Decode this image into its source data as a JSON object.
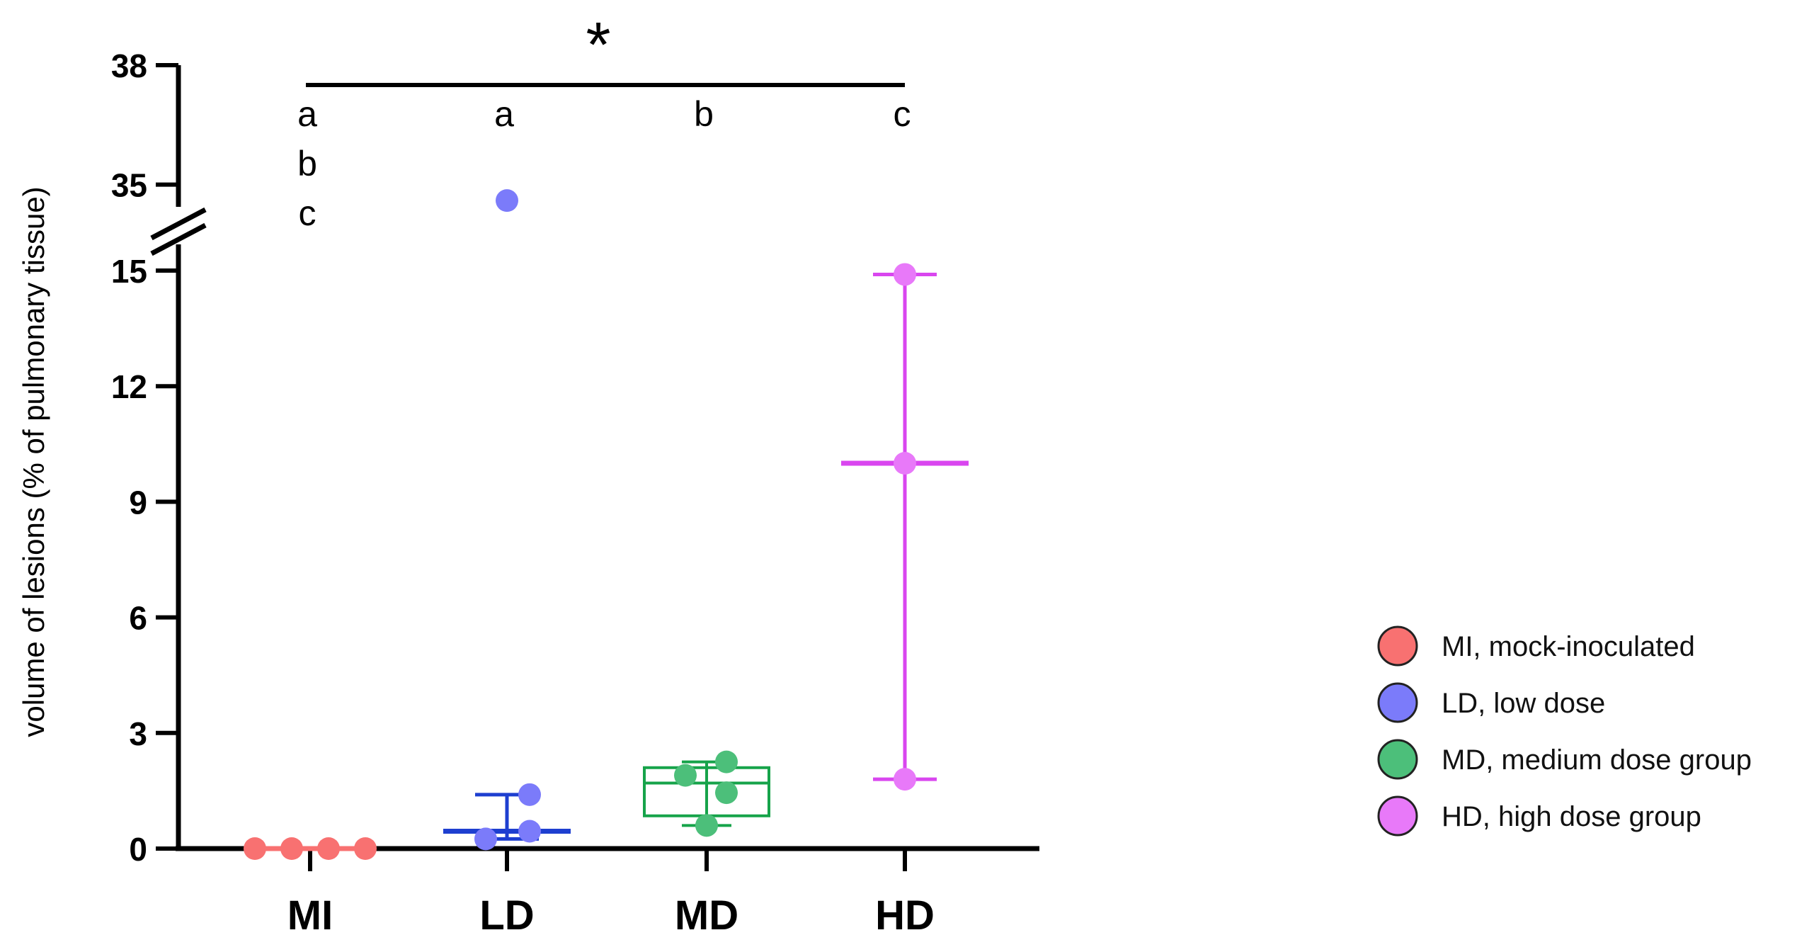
{
  "chart_data": {
    "type": "box_scatter",
    "ylabel": "volume of lesions (% of pulmonary tissue)",
    "xlabel": "",
    "y_axis": {
      "segments": [
        {
          "range": [
            0,
            15
          ],
          "ticks": [
            0,
            3,
            6,
            9,
            12,
            15
          ]
        },
        {
          "range": [
            34.3,
            38
          ],
          "ticks": [
            35,
            38
          ]
        }
      ],
      "axis_break": true
    },
    "categories": [
      "MI",
      "LD",
      "MD",
      "HD"
    ],
    "series": [
      {
        "name": "MI, mock-inoculated",
        "color": "#f87171",
        "points": [
          0,
          0,
          0,
          0
        ],
        "summary": {
          "kind": "median",
          "median": 0
        }
      },
      {
        "name": "LD, low dose",
        "color": "#7b7bfa",
        "line_color": "#1e3fd0",
        "points": [
          34.6,
          1.4,
          0.45,
          0.25
        ],
        "summary": {
          "kind": "median_range",
          "median": 0.45,
          "upper": 1.4,
          "lower": 0.25
        }
      },
      {
        "name": "MD, medium dose group",
        "color": "#4cbf7a",
        "line_color": "#16a34a",
        "points": [
          2.25,
          1.9,
          1.45,
          0.6
        ],
        "summary": {
          "kind": "box",
          "q1": 0.85,
          "median": 1.7,
          "q3": 2.1,
          "min": 0.6,
          "max": 2.25
        }
      },
      {
        "name": "HD, high dose group",
        "color": "#e879f9",
        "line_color": "#d946ef",
        "points": [
          14.9,
          10.0,
          1.8
        ],
        "summary": {
          "kind": "median_range",
          "median": 10.0,
          "upper": 14.9,
          "lower": 1.8
        }
      }
    ],
    "significance": {
      "marker": "*",
      "bracket": [
        "MI",
        "HD"
      ],
      "letters": [
        [
          "a",
          "b",
          "c"
        ],
        [
          "a"
        ],
        [
          "b"
        ],
        [
          "c"
        ]
      ]
    },
    "legend": {
      "position": "right",
      "items": [
        {
          "label": "MI, mock-inoculated",
          "color": "#f87171"
        },
        {
          "label": "LD, low dose",
          "color": "#7b7bfa"
        },
        {
          "label": "MD, medium dose group",
          "color": "#4cbf7a"
        },
        {
          "label": "HD, high dose group",
          "color": "#e879f9"
        }
      ]
    }
  }
}
